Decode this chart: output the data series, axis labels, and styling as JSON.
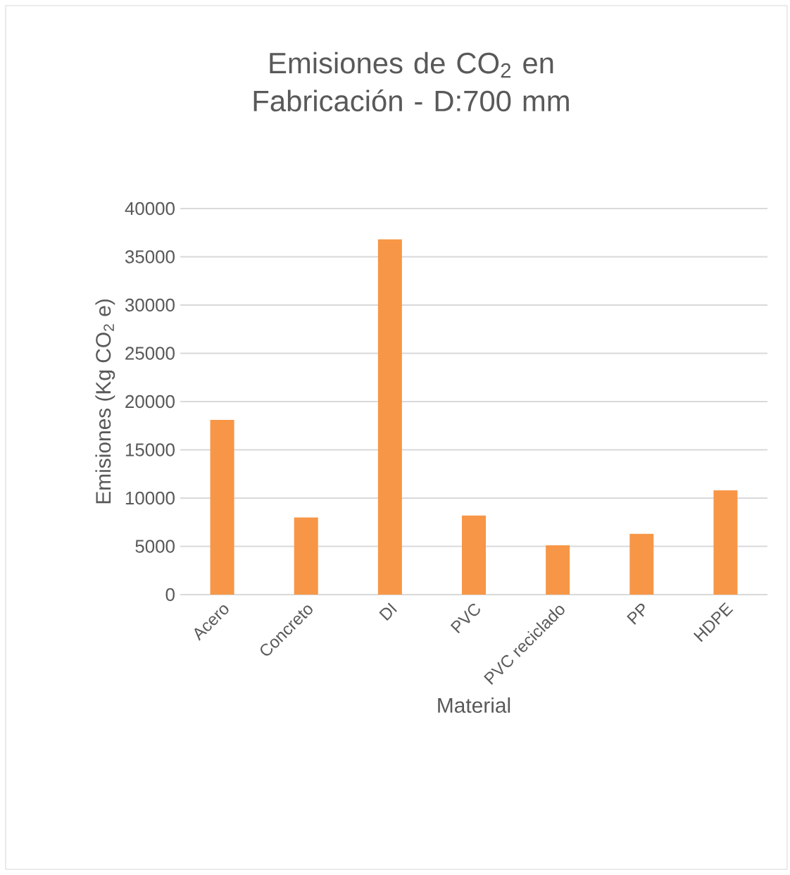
{
  "chart_data": {
    "type": "bar",
    "title": "Emisiones de CO$_{2}$ en Fabricación - D:700 mm",
    "xlabel": "Material",
    "ylabel": "Emisiones  (Kg CO$_{2}$ e)",
    "categories": [
      "Acero",
      "Concreto",
      "DI",
      "PVC",
      "PVC reciclado",
      "PP",
      "HDPE"
    ],
    "values": [
      18100,
      8000,
      36800,
      8200,
      5100,
      6300,
      10800
    ],
    "color": "#f79646",
    "ylim": [
      0,
      40000
    ],
    "yticks": [
      0,
      5000,
      10000,
      15000,
      20000,
      25000,
      30000,
      35000,
      40000
    ],
    "grid": "y"
  }
}
